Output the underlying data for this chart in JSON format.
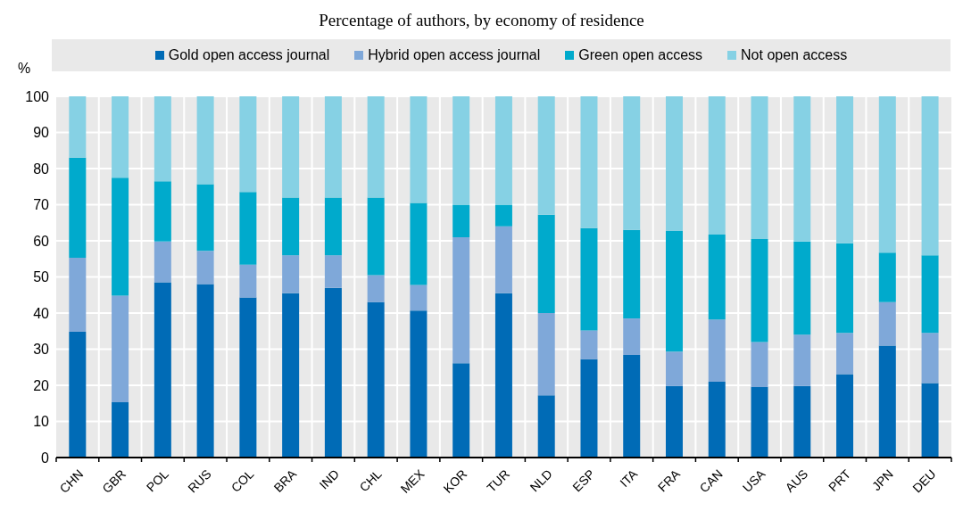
{
  "chart_data": {
    "type": "bar",
    "title": "Percentage of authors, by economy of residence",
    "ylabel": "%",
    "stacked": true,
    "grid": true,
    "legend": "top",
    "categories": [
      "CHN",
      "GBR",
      "POL",
      "RUS",
      "COL",
      "BRA",
      "IND",
      "CHL",
      "MEX",
      "KOR",
      "TUR",
      "NLD",
      "ESP",
      "ITA",
      "FRA",
      "CAN",
      "USA",
      "AUS",
      "PRT",
      "JPN",
      "DEU"
    ],
    "ylim": [
      0,
      100
    ],
    "yticks": [
      0,
      10,
      20,
      30,
      40,
      50,
      60,
      70,
      80,
      90,
      100
    ],
    "series": [
      {
        "name": "Gold open access journal",
        "color": "#006bb6",
        "values": [
          34.8,
          15.3,
          48.5,
          48,
          44.3,
          45.5,
          47,
          43,
          40.7,
          26.1,
          45.5,
          17.2,
          27.2,
          28.4,
          19.8,
          21,
          19.5,
          19.8,
          23.1,
          31,
          20.6
        ]
      },
      {
        "name": "Hybrid open access journal",
        "color": "#7fa8d9",
        "values": [
          20.5,
          29.5,
          11.3,
          9.2,
          9.1,
          10.5,
          9,
          7.5,
          7.1,
          34.9,
          18.5,
          22.8,
          8,
          10.1,
          9.5,
          17.2,
          12.5,
          14.2,
          11.4,
          12,
          13.9
        ]
      },
      {
        "name": "Green open access",
        "color": "#00aacc",
        "values": [
          27.7,
          32.7,
          16.7,
          18.5,
          20.1,
          16,
          16,
          21.5,
          22.7,
          9,
          6,
          27.2,
          28.3,
          24.5,
          33.4,
          23.5,
          28.5,
          25.8,
          24.8,
          13.7,
          21.5
        ]
      },
      {
        "name": "Not open access",
        "color": "#86d1e4",
        "values": [
          17,
          22.5,
          23.5,
          24.3,
          26.5,
          28,
          28,
          28,
          29.5,
          30,
          30,
          32.8,
          36.5,
          37,
          37.3,
          38.3,
          39.5,
          40.2,
          40.7,
          43.3,
          44
        ]
      }
    ]
  }
}
